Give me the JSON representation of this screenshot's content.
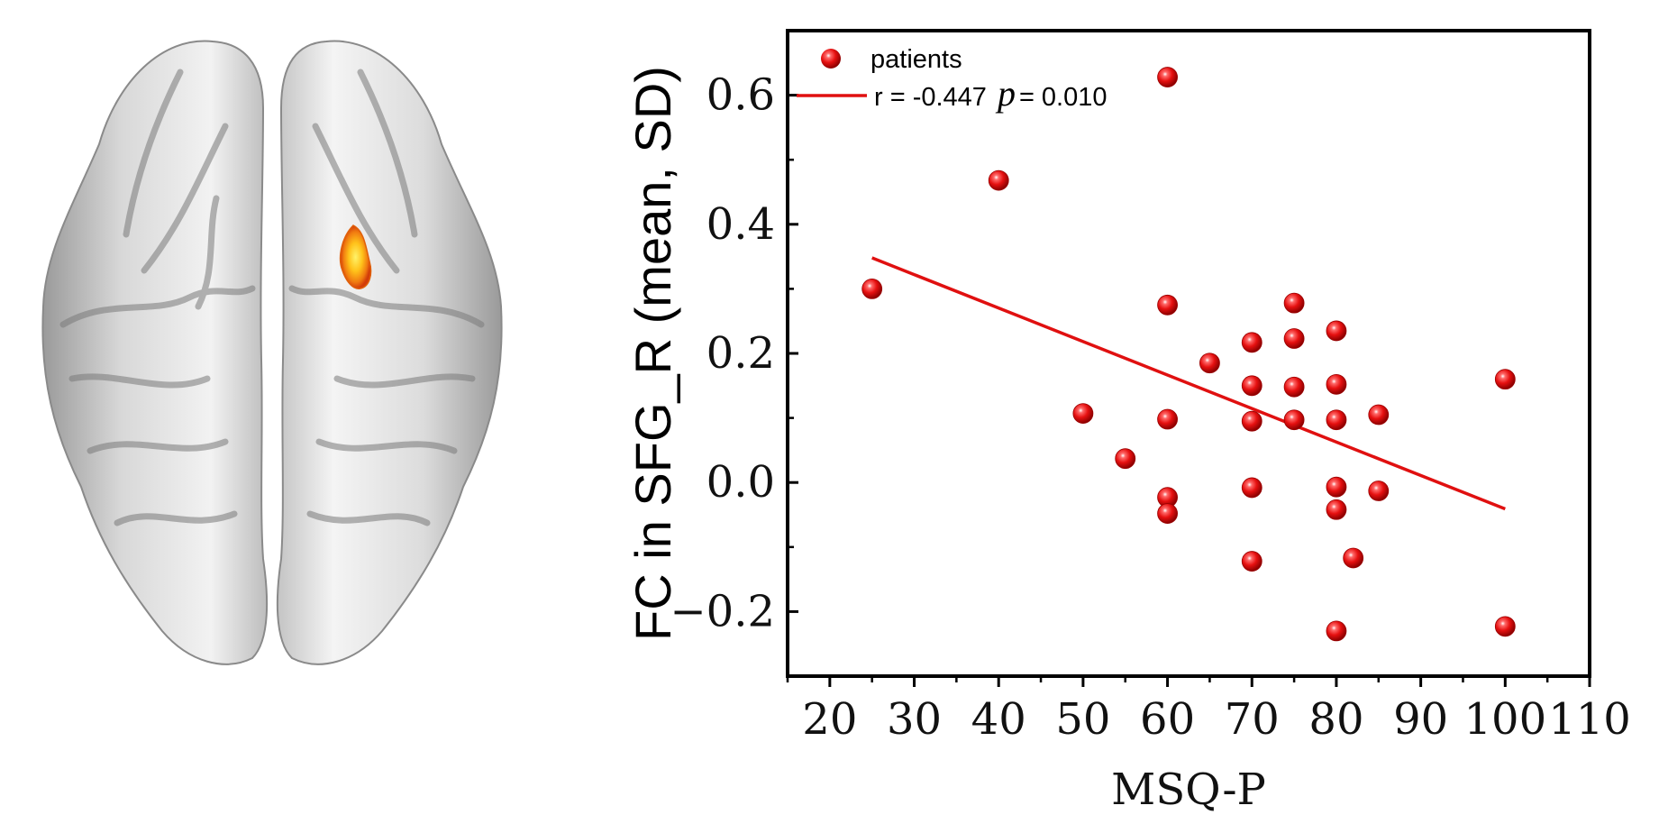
{
  "figure": {
    "brain_image_label": "brain-top-view"
  },
  "chart_data": {
    "type": "scatter",
    "xlabel": "MSQ-P",
    "ylabel": "FC in SFG_R (mean, SD)",
    "xlim": [
      15,
      110
    ],
    "ylim": [
      -0.3,
      0.7
    ],
    "x_ticks": [
      20,
      30,
      40,
      50,
      60,
      70,
      80,
      90,
      100,
      110
    ],
    "y_ticks": [
      -0.2,
      0.0,
      0.2,
      0.4,
      0.6
    ],
    "x_tick_labels": [
      "20",
      "30",
      "40",
      "50",
      "60",
      "70",
      "80",
      "90",
      "100",
      "110"
    ],
    "y_tick_labels": [
      "−0.2",
      "0.0",
      "0.2",
      "0.4",
      "0.6"
    ],
    "series": [
      {
        "name": "patients",
        "color": "#e81010",
        "x": [
          25,
          40,
          50,
          55,
          60,
          60,
          60,
          60,
          60,
          65,
          70,
          70,
          70,
          70,
          70,
          75,
          75,
          75,
          75,
          80,
          80,
          80,
          80,
          80,
          80,
          82,
          85,
          85,
          100,
          100
        ],
        "y": [
          0.3,
          0.468,
          0.107,
          0.037,
          0.628,
          0.275,
          0.098,
          -0.023,
          -0.048,
          0.185,
          0.217,
          0.15,
          0.095,
          -0.008,
          -0.122,
          0.278,
          0.223,
          0.148,
          0.097,
          0.235,
          0.152,
          0.097,
          -0.007,
          -0.042,
          -0.23,
          -0.117,
          0.105,
          -0.013,
          0.16,
          -0.223
        ]
      }
    ],
    "fit_line": {
      "color": "#e01010",
      "x": [
        25,
        100
      ],
      "y": [
        0.348,
        -0.041
      ]
    },
    "legend": {
      "placement": "top-left",
      "entries": [
        "patients"
      ],
      "stats_prefix": "r = -0.447",
      "stats_p_symbol": "p",
      "stats_suffix": "= 0.010"
    }
  }
}
